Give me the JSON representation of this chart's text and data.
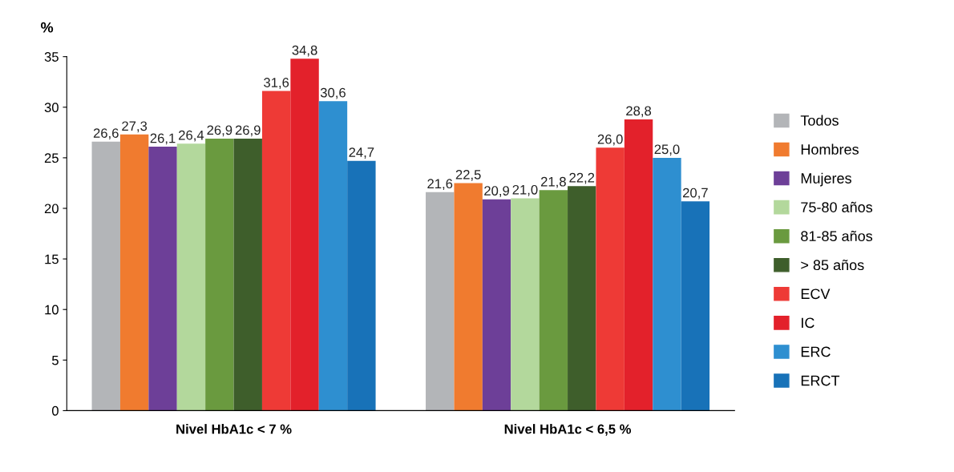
{
  "chart_data": {
    "type": "bar",
    "ylabel": "%",
    "categories": [
      "Nivel HbA1c < 7 %",
      "Nivel HbA1c < 6,5 %"
    ],
    "series": [
      {
        "name": "Todos",
        "color": "#b3b5b8",
        "values": [
          26.6,
          21.6
        ],
        "value_labels": [
          "26,6",
          "21,6"
        ]
      },
      {
        "name": "Hombres",
        "color": "#f07b2f",
        "values": [
          27.3,
          22.5
        ],
        "value_labels": [
          "27,3",
          "22,5"
        ]
      },
      {
        "name": "Mujeres",
        "color": "#6d3f98",
        "values": [
          26.1,
          20.9
        ],
        "value_labels": [
          "26,1",
          "20,9"
        ]
      },
      {
        "name": "75-80 años",
        "color": "#b3d89c",
        "values": [
          26.4,
          21.0
        ],
        "value_labels": [
          "26,4",
          "21,0"
        ]
      },
      {
        "name": "81-85 años",
        "color": "#6a9a3f",
        "values": [
          26.9,
          21.8
        ],
        "value_labels": [
          "26,9",
          "21,8"
        ]
      },
      {
        "name": "> 85 años",
        "color": "#3e5e2b",
        "values": [
          26.9,
          22.2
        ],
        "value_labels": [
          "26,9",
          "22,2"
        ]
      },
      {
        "name": "ECV",
        "color": "#ee3a36",
        "values": [
          31.6,
          26.0
        ],
        "value_labels": [
          "31,6",
          "26,0"
        ]
      },
      {
        "name": "IC",
        "color": "#e3212b",
        "values": [
          34.8,
          28.8
        ],
        "value_labels": [
          "34,8",
          "28,8"
        ]
      },
      {
        "name": "ERC",
        "color": "#2e8fd0",
        "values": [
          30.6,
          25.0
        ],
        "value_labels": [
          "30,6",
          "25,0"
        ]
      },
      {
        "name": "ERCT",
        "color": "#1872b8",
        "values": [
          24.7,
          20.7
        ],
        "value_labels": [
          "24,7",
          "20,7"
        ]
      }
    ],
    "ylim": [
      0,
      35
    ],
    "yticks": [
      0,
      5,
      10,
      15,
      20,
      25,
      30,
      35
    ],
    "grid": false,
    "legend": "right"
  }
}
